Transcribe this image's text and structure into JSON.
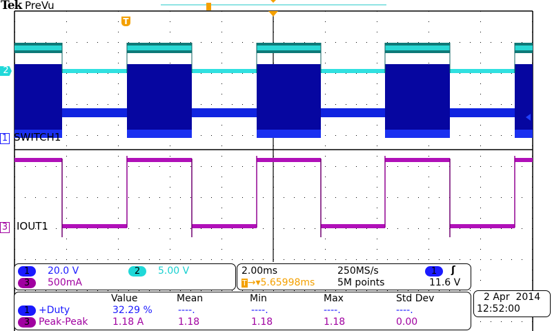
{
  "header": {
    "brand": "Tek",
    "mode": "PreVu"
  },
  "channels": {
    "ch1": {
      "number": "1",
      "label": "SWITCH1",
      "scale": "20.0 V",
      "color": "#0a0aa0"
    },
    "ch2": {
      "number": "2",
      "scale": "5.00 V",
      "color": "#20d8d8"
    },
    "ch3": {
      "number": "3",
      "label": "IOUT1",
      "scale": "500mA",
      "color": "#b000b0"
    }
  },
  "trigger": {
    "marker": "T",
    "timebase": "2.00ms",
    "sample_rate": "250MS/s",
    "delay": "5.65998ms",
    "record_length": "5M points",
    "source": "1",
    "slope": "rising-edge-icon",
    "level": "11.6 V",
    "color": "#f4a000"
  },
  "measurements": {
    "headers": [
      "Value",
      "Mean",
      "Min",
      "Max",
      "Std Dev"
    ],
    "rows": [
      {
        "channel": "1",
        "name": "+Duty",
        "value": "32.29 %",
        "mean": "----.",
        "min": "----.",
        "max": "----.",
        "std": "----."
      },
      {
        "channel": "3",
        "name": "Peak-Peak",
        "value": "1.18 A",
        "mean": "1.18",
        "min": "1.18",
        "max": "1.18",
        "std": "0.00"
      }
    ]
  },
  "datetime": {
    "date": "2 Apr  2014",
    "time": "12:52:00"
  }
}
